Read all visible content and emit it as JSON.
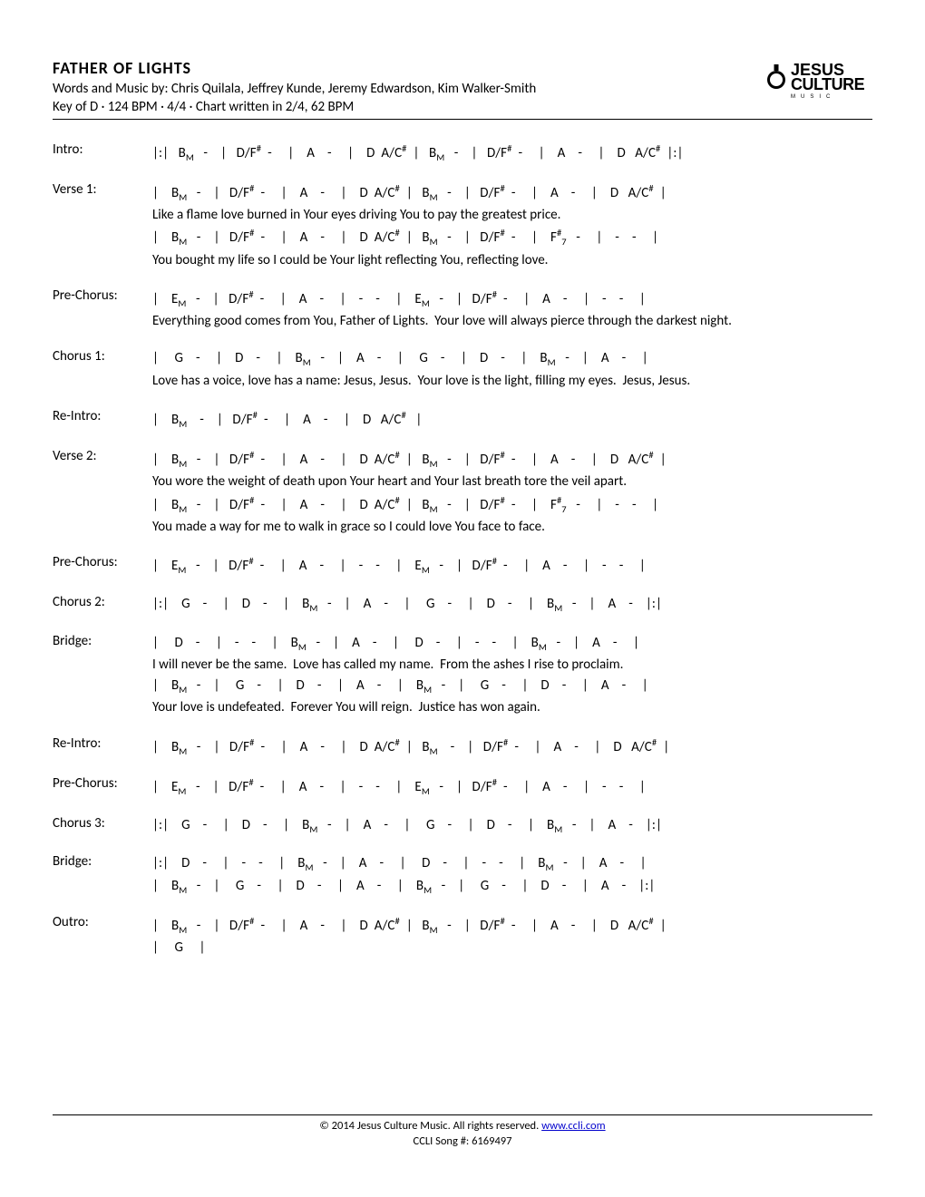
{
  "header": {
    "title": "FATHER OF LIGHTS",
    "byline": "Words and Music by: Chris Quilala, Jeffrey Kunde, Jeremy Edwardson, Kim Walker-Smith",
    "keyline": "Key of D · 124 BPM · 4/4 · Chart written in 2/4, 62 BPM",
    "logo_line1": "JESUS",
    "logo_line2": "CULTURE",
    "logo_line3": "MUSIC"
  },
  "sections": [
    {
      "label": "Intro:",
      "lines": [
        {
          "type": "chords",
          "html": "|:|&nbsp;&nbsp; B<sub>M</sub>&nbsp;&nbsp; -&nbsp;&nbsp;&nbsp; |&nbsp;&nbsp; D/F<sup>#</sup>&nbsp; -&nbsp;&nbsp;&nbsp;&nbsp; |&nbsp;&nbsp;&nbsp; A&nbsp;&nbsp;&nbsp; -&nbsp;&nbsp;&nbsp;&nbsp; |&nbsp;&nbsp;&nbsp; D&nbsp; A/C<sup>#</sup>&nbsp; |&nbsp;&nbsp; B<sub>M</sub>&nbsp;&nbsp; -&nbsp;&nbsp;&nbsp; |&nbsp;&nbsp; D/F<sup>#</sup>&nbsp; -&nbsp;&nbsp;&nbsp;&nbsp; |&nbsp;&nbsp;&nbsp; A&nbsp;&nbsp;&nbsp; -&nbsp;&nbsp;&nbsp;&nbsp; |&nbsp;&nbsp;&nbsp; D&nbsp;&nbsp; A/C<sup>#</sup>&nbsp;&nbsp;|:|"
        }
      ]
    },
    {
      "label": "Verse 1:",
      "lines": [
        {
          "type": "chords",
          "html": "|&nbsp;&nbsp;&nbsp; B<sub>M</sub>&nbsp;&nbsp; -&nbsp;&nbsp;&nbsp; |&nbsp;&nbsp; D/F<sup>#</sup>&nbsp; -&nbsp;&nbsp;&nbsp;&nbsp; |&nbsp;&nbsp;&nbsp; A&nbsp;&nbsp;&nbsp; -&nbsp;&nbsp;&nbsp;&nbsp; |&nbsp;&nbsp;&nbsp; D&nbsp; A/C<sup>#</sup>&nbsp; |&nbsp;&nbsp; B<sub>M</sub>&nbsp;&nbsp; -&nbsp;&nbsp;&nbsp; |&nbsp;&nbsp; D/F<sup>#</sup>&nbsp; -&nbsp;&nbsp;&nbsp;&nbsp; |&nbsp;&nbsp;&nbsp; A&nbsp;&nbsp;&nbsp; -&nbsp;&nbsp;&nbsp;&nbsp; |&nbsp;&nbsp;&nbsp; D&nbsp;&nbsp; A/C<sup>#</sup>&nbsp;&nbsp;|"
        },
        {
          "type": "lyric",
          "html": "Like a flame love burned in Your eyes driving You to pay the greatest price."
        },
        {
          "type": "chords",
          "html": "|&nbsp;&nbsp;&nbsp; B<sub>M</sub>&nbsp;&nbsp; -&nbsp;&nbsp;&nbsp; |&nbsp;&nbsp; D/F<sup>#</sup>&nbsp; -&nbsp;&nbsp;&nbsp;&nbsp; |&nbsp;&nbsp;&nbsp; A&nbsp;&nbsp;&nbsp; -&nbsp;&nbsp;&nbsp;&nbsp; |&nbsp;&nbsp;&nbsp; D&nbsp; A/C<sup>#</sup>&nbsp; |&nbsp;&nbsp; B<sub>M</sub>&nbsp;&nbsp; -&nbsp;&nbsp;&nbsp; |&nbsp;&nbsp; D/F<sup>#</sup>&nbsp; -&nbsp;&nbsp;&nbsp;&nbsp; |&nbsp;&nbsp;&nbsp; F<sup>#</sup><sub>7</sub>&nbsp;&nbsp; -&nbsp;&nbsp;&nbsp;&nbsp; |&nbsp;&nbsp;&nbsp; -&nbsp;&nbsp;&nbsp; -&nbsp;&nbsp;&nbsp;&nbsp; |"
        },
        {
          "type": "lyric",
          "html": "You bought my life so I could be Your light reflecting You, reflecting love."
        }
      ]
    },
    {
      "label": "Pre-Chorus:",
      "lines": [
        {
          "type": "chords",
          "html": "|&nbsp;&nbsp;&nbsp; E<sub>M</sub>&nbsp;&nbsp; -&nbsp;&nbsp;&nbsp; |&nbsp;&nbsp; D/F<sup>#</sup>&nbsp; -&nbsp;&nbsp;&nbsp;&nbsp; |&nbsp;&nbsp;&nbsp; A&nbsp;&nbsp;&nbsp; -&nbsp;&nbsp;&nbsp;&nbsp; |&nbsp;&nbsp;&nbsp; -&nbsp;&nbsp;&nbsp; -&nbsp;&nbsp;&nbsp;&nbsp; |&nbsp;&nbsp;&nbsp; E<sub>M</sub>&nbsp;&nbsp; -&nbsp;&nbsp;&nbsp; |&nbsp;&nbsp; D/F<sup>#</sup>&nbsp; -&nbsp;&nbsp;&nbsp;&nbsp; |&nbsp;&nbsp;&nbsp; A&nbsp;&nbsp;&nbsp; -&nbsp;&nbsp;&nbsp;&nbsp; |&nbsp;&nbsp;&nbsp; -&nbsp;&nbsp;&nbsp; -&nbsp;&nbsp;&nbsp;&nbsp; |"
        },
        {
          "type": "lyric",
          "html": "Everything good comes from You, Father of Lights.&nbsp;&nbsp;Your love will always pierce through the darkest night."
        }
      ]
    },
    {
      "label": "Chorus 1:",
      "lines": [
        {
          "type": "chords",
          "html": "|&nbsp;&nbsp;&nbsp;&nbsp; G&nbsp;&nbsp;&nbsp; -&nbsp;&nbsp;&nbsp;&nbsp; |&nbsp;&nbsp;&nbsp; D&nbsp;&nbsp;&nbsp; -&nbsp;&nbsp;&nbsp;&nbsp; |&nbsp;&nbsp;&nbsp; B<sub>M</sub>&nbsp;&nbsp; -&nbsp;&nbsp;&nbsp; |&nbsp;&nbsp;&nbsp; A&nbsp;&nbsp;&nbsp; -&nbsp;&nbsp;&nbsp;&nbsp; |&nbsp;&nbsp;&nbsp;&nbsp; G&nbsp;&nbsp;&nbsp; -&nbsp;&nbsp;&nbsp;&nbsp; |&nbsp;&nbsp;&nbsp; D&nbsp;&nbsp;&nbsp; -&nbsp;&nbsp;&nbsp;&nbsp; |&nbsp;&nbsp;&nbsp; B<sub>M</sub>&nbsp;&nbsp; -&nbsp;&nbsp;&nbsp; |&nbsp;&nbsp;&nbsp; A&nbsp;&nbsp;&nbsp; -&nbsp;&nbsp;&nbsp;&nbsp; |"
        },
        {
          "type": "lyric",
          "html": "Love has a voice, love has a name: Jesus, Jesus.&nbsp;&nbsp;Your love is the light, filling my eyes.&nbsp;&nbsp;Jesus, Jesus."
        }
      ]
    },
    {
      "label": "Re-Intro:",
      "lines": [
        {
          "type": "chords",
          "html": "|&nbsp;&nbsp;&nbsp; B<sub>M</sub>&nbsp;&nbsp;&nbsp;&nbsp;-&nbsp;&nbsp;&nbsp; |&nbsp;&nbsp; D/F<sup>#</sup>&nbsp; -&nbsp;&nbsp;&nbsp;&nbsp; |&nbsp;&nbsp;&nbsp; A&nbsp;&nbsp;&nbsp; -&nbsp;&nbsp;&nbsp;&nbsp; |&nbsp;&nbsp;&nbsp; D&nbsp;&nbsp; A/C<sup>#</sup>&nbsp;&nbsp;&nbsp;|"
        }
      ]
    },
    {
      "label": "Verse 2:",
      "lines": [
        {
          "type": "chords",
          "html": "|&nbsp;&nbsp;&nbsp; B<sub>M</sub>&nbsp;&nbsp; -&nbsp;&nbsp;&nbsp; |&nbsp;&nbsp; D/F<sup>#</sup>&nbsp; -&nbsp;&nbsp;&nbsp;&nbsp; |&nbsp;&nbsp;&nbsp; A&nbsp;&nbsp;&nbsp; -&nbsp;&nbsp;&nbsp;&nbsp; |&nbsp;&nbsp;&nbsp; D&nbsp; A/C<sup>#</sup>&nbsp; |&nbsp;&nbsp; B<sub>M</sub>&nbsp;&nbsp; -&nbsp;&nbsp;&nbsp; |&nbsp;&nbsp; D/F<sup>#</sup>&nbsp; -&nbsp;&nbsp;&nbsp;&nbsp; |&nbsp;&nbsp;&nbsp; A&nbsp;&nbsp;&nbsp; -&nbsp;&nbsp;&nbsp;&nbsp; |&nbsp;&nbsp;&nbsp; D&nbsp;&nbsp; A/C<sup>#</sup>&nbsp;&nbsp;|"
        },
        {
          "type": "lyric",
          "html": "You wore the weight of death upon Your heart and Your last breath tore the veil apart."
        },
        {
          "type": "chords",
          "html": "|&nbsp;&nbsp;&nbsp; B<sub>M</sub>&nbsp;&nbsp; -&nbsp;&nbsp;&nbsp; |&nbsp;&nbsp; D/F<sup>#</sup>&nbsp; -&nbsp;&nbsp;&nbsp;&nbsp; |&nbsp;&nbsp;&nbsp; A&nbsp;&nbsp;&nbsp; -&nbsp;&nbsp;&nbsp;&nbsp; |&nbsp;&nbsp;&nbsp; D&nbsp; A/C<sup>#</sup>&nbsp; |&nbsp;&nbsp; B<sub>M</sub>&nbsp;&nbsp; -&nbsp;&nbsp;&nbsp; |&nbsp;&nbsp; D/F<sup>#</sup>&nbsp; -&nbsp;&nbsp;&nbsp;&nbsp; |&nbsp;&nbsp;&nbsp; F<sup>#</sup><sub>7</sub>&nbsp;&nbsp; -&nbsp;&nbsp;&nbsp;&nbsp; |&nbsp;&nbsp;&nbsp; -&nbsp;&nbsp;&nbsp; -&nbsp;&nbsp;&nbsp;&nbsp; |"
        },
        {
          "type": "lyric",
          "html": "You made a way for me to walk in grace so I could love You face to face."
        }
      ]
    },
    {
      "label": "Pre-Chorus:",
      "lines": [
        {
          "type": "chords",
          "html": "|&nbsp;&nbsp;&nbsp; E<sub>M</sub>&nbsp;&nbsp;&nbsp;-&nbsp;&nbsp;&nbsp; |&nbsp;&nbsp; D/F<sup>#</sup>&nbsp; -&nbsp;&nbsp;&nbsp;&nbsp; |&nbsp;&nbsp;&nbsp; A&nbsp;&nbsp;&nbsp; -&nbsp;&nbsp;&nbsp;&nbsp; |&nbsp;&nbsp;&nbsp; -&nbsp;&nbsp;&nbsp; -&nbsp;&nbsp;&nbsp;&nbsp; |&nbsp;&nbsp;&nbsp; E<sub>M</sub>&nbsp;&nbsp; -&nbsp;&nbsp;&nbsp; |&nbsp;&nbsp; D/F<sup>#</sup>&nbsp; -&nbsp;&nbsp;&nbsp;&nbsp; |&nbsp;&nbsp;&nbsp; A&nbsp;&nbsp;&nbsp; -&nbsp;&nbsp;&nbsp;&nbsp; |&nbsp;&nbsp;&nbsp; -&nbsp;&nbsp;&nbsp; -&nbsp;&nbsp;&nbsp;&nbsp; |"
        }
      ]
    },
    {
      "label": "Chorus 2:",
      "lines": [
        {
          "type": "chords",
          "html": "|:|&nbsp;&nbsp;&nbsp; G&nbsp;&nbsp;&nbsp; -&nbsp;&nbsp;&nbsp;&nbsp; |&nbsp;&nbsp;&nbsp; D&nbsp;&nbsp;&nbsp; -&nbsp;&nbsp;&nbsp;&nbsp; |&nbsp;&nbsp;&nbsp; B<sub>M</sub>&nbsp;&nbsp; -&nbsp;&nbsp;&nbsp; |&nbsp;&nbsp;&nbsp; A&nbsp;&nbsp;&nbsp; -&nbsp;&nbsp;&nbsp;&nbsp; |&nbsp;&nbsp;&nbsp;&nbsp; G&nbsp;&nbsp;&nbsp; -&nbsp;&nbsp;&nbsp;&nbsp; |&nbsp;&nbsp;&nbsp; D&nbsp;&nbsp;&nbsp; -&nbsp;&nbsp;&nbsp;&nbsp; |&nbsp;&nbsp;&nbsp; B<sub>M</sub>&nbsp;&nbsp; -&nbsp;&nbsp;&nbsp; |&nbsp;&nbsp;&nbsp; A&nbsp;&nbsp;&nbsp; -&nbsp;&nbsp;&nbsp;&nbsp;|:|"
        }
      ]
    },
    {
      "label": "Bridge:",
      "lines": [
        {
          "type": "chords",
          "html": "|&nbsp;&nbsp;&nbsp;&nbsp; D&nbsp;&nbsp;&nbsp; -&nbsp;&nbsp;&nbsp;&nbsp; |&nbsp;&nbsp;&nbsp; -&nbsp;&nbsp;&nbsp; -&nbsp;&nbsp;&nbsp;&nbsp; |&nbsp;&nbsp;&nbsp; B<sub>M</sub>&nbsp;&nbsp; -&nbsp;&nbsp;&nbsp; |&nbsp;&nbsp;&nbsp; A&nbsp;&nbsp;&nbsp; -&nbsp;&nbsp;&nbsp;&nbsp; |&nbsp;&nbsp;&nbsp;&nbsp; D&nbsp;&nbsp;&nbsp; -&nbsp;&nbsp;&nbsp;&nbsp; |&nbsp;&nbsp;&nbsp; -&nbsp;&nbsp;&nbsp; -&nbsp;&nbsp;&nbsp;&nbsp; |&nbsp;&nbsp;&nbsp; B<sub>M</sub>&nbsp;&nbsp; -&nbsp;&nbsp;&nbsp; |&nbsp;&nbsp;&nbsp; A&nbsp;&nbsp;&nbsp; -&nbsp;&nbsp;&nbsp;&nbsp; |"
        },
        {
          "type": "lyric",
          "html": "I will never be the same.&nbsp;&nbsp;Love has called my name.&nbsp;&nbsp;From the ashes I rise to proclaim."
        },
        {
          "type": "chords",
          "html": "|&nbsp;&nbsp;&nbsp; B<sub>M</sub>&nbsp;&nbsp; -&nbsp;&nbsp;&nbsp; |&nbsp;&nbsp;&nbsp;&nbsp; G&nbsp;&nbsp;&nbsp; -&nbsp;&nbsp;&nbsp;&nbsp; |&nbsp;&nbsp;&nbsp; D&nbsp;&nbsp;&nbsp; -&nbsp;&nbsp;&nbsp;&nbsp; |&nbsp;&nbsp;&nbsp; A&nbsp;&nbsp;&nbsp; -&nbsp;&nbsp;&nbsp;&nbsp; |&nbsp;&nbsp;&nbsp; B<sub>M</sub>&nbsp;&nbsp; -&nbsp;&nbsp;&nbsp; |&nbsp;&nbsp;&nbsp;&nbsp; G&nbsp;&nbsp;&nbsp; -&nbsp;&nbsp;&nbsp;&nbsp; |&nbsp;&nbsp;&nbsp; D&nbsp;&nbsp;&nbsp; -&nbsp;&nbsp;&nbsp;&nbsp; |&nbsp;&nbsp;&nbsp; A&nbsp;&nbsp;&nbsp; -&nbsp;&nbsp;&nbsp;&nbsp; |"
        },
        {
          "type": "lyric",
          "html": "Your love is undefeated.&nbsp;&nbsp;Forever You will reign.&nbsp;&nbsp;Justice has won again."
        }
      ]
    },
    {
      "label": "Re-Intro:",
      "lines": [
        {
          "type": "chords",
          "html": "|&nbsp;&nbsp;&nbsp; B<sub>M</sub>&nbsp;&nbsp; -&nbsp;&nbsp;&nbsp; |&nbsp;&nbsp; D/F<sup>#</sup>&nbsp; -&nbsp;&nbsp;&nbsp;&nbsp; |&nbsp;&nbsp;&nbsp; A&nbsp;&nbsp;&nbsp; -&nbsp;&nbsp;&nbsp;&nbsp; |&nbsp;&nbsp;&nbsp; D&nbsp; A/C<sup>#</sup>&nbsp; |&nbsp;&nbsp; B<sub>M</sub>&nbsp;&nbsp;&nbsp;&nbsp;-&nbsp;&nbsp;&nbsp; |&nbsp;&nbsp; D/F<sup>#</sup>&nbsp; -&nbsp;&nbsp;&nbsp;&nbsp; |&nbsp;&nbsp;&nbsp; A&nbsp;&nbsp;&nbsp; -&nbsp;&nbsp;&nbsp;&nbsp; |&nbsp;&nbsp;&nbsp; D&nbsp;&nbsp; A/C<sup>#</sup>&nbsp;&nbsp;|"
        }
      ]
    },
    {
      "label": "Pre-Chorus:",
      "lines": [
        {
          "type": "chords",
          "html": "|&nbsp;&nbsp;&nbsp; E<sub>M</sub>&nbsp;&nbsp;&nbsp;-&nbsp;&nbsp;&nbsp; |&nbsp;&nbsp; D/F<sup>#</sup>&nbsp; -&nbsp;&nbsp;&nbsp;&nbsp; |&nbsp;&nbsp;&nbsp; A&nbsp;&nbsp;&nbsp; -&nbsp;&nbsp;&nbsp;&nbsp; |&nbsp;&nbsp;&nbsp; -&nbsp;&nbsp;&nbsp; -&nbsp;&nbsp;&nbsp;&nbsp; |&nbsp;&nbsp;&nbsp; E<sub>M</sub>&nbsp;&nbsp; -&nbsp;&nbsp;&nbsp; |&nbsp;&nbsp; D/F<sup>#</sup>&nbsp; -&nbsp;&nbsp;&nbsp;&nbsp; |&nbsp;&nbsp;&nbsp; A&nbsp;&nbsp;&nbsp; -&nbsp;&nbsp;&nbsp;&nbsp; |&nbsp;&nbsp;&nbsp; -&nbsp;&nbsp;&nbsp; -&nbsp;&nbsp;&nbsp;&nbsp; |"
        }
      ]
    },
    {
      "label": "Chorus 3:",
      "lines": [
        {
          "type": "chords",
          "html": "|:|&nbsp;&nbsp;&nbsp; G&nbsp;&nbsp;&nbsp; -&nbsp;&nbsp;&nbsp;&nbsp; |&nbsp;&nbsp;&nbsp; D&nbsp;&nbsp;&nbsp; -&nbsp;&nbsp;&nbsp;&nbsp; |&nbsp;&nbsp;&nbsp; B<sub>M</sub>&nbsp;&nbsp; -&nbsp;&nbsp;&nbsp; |&nbsp;&nbsp;&nbsp; A&nbsp;&nbsp;&nbsp; -&nbsp;&nbsp;&nbsp;&nbsp; |&nbsp;&nbsp;&nbsp;&nbsp; G&nbsp;&nbsp;&nbsp; -&nbsp;&nbsp;&nbsp;&nbsp; |&nbsp;&nbsp;&nbsp; D&nbsp;&nbsp;&nbsp; -&nbsp;&nbsp;&nbsp;&nbsp; |&nbsp;&nbsp;&nbsp; B<sub>M</sub>&nbsp;&nbsp; -&nbsp;&nbsp;&nbsp; |&nbsp;&nbsp;&nbsp; A&nbsp;&nbsp;&nbsp; -&nbsp;&nbsp;&nbsp;&nbsp;|:|"
        }
      ]
    },
    {
      "label": "Bridge:",
      "lines": [
        {
          "type": "chords",
          "html": "|:|&nbsp;&nbsp;&nbsp; D&nbsp;&nbsp;&nbsp; -&nbsp;&nbsp;&nbsp;&nbsp; |&nbsp;&nbsp;&nbsp; -&nbsp;&nbsp;&nbsp; -&nbsp;&nbsp;&nbsp;&nbsp; |&nbsp;&nbsp;&nbsp; B<sub>M</sub>&nbsp;&nbsp; -&nbsp;&nbsp;&nbsp; |&nbsp;&nbsp;&nbsp; A&nbsp;&nbsp;&nbsp; -&nbsp;&nbsp;&nbsp;&nbsp; |&nbsp;&nbsp;&nbsp;&nbsp; D&nbsp;&nbsp;&nbsp; -&nbsp;&nbsp;&nbsp;&nbsp; |&nbsp;&nbsp;&nbsp; -&nbsp;&nbsp;&nbsp; -&nbsp;&nbsp;&nbsp;&nbsp; |&nbsp;&nbsp;&nbsp; B<sub>M</sub>&nbsp;&nbsp; -&nbsp;&nbsp;&nbsp; |&nbsp;&nbsp;&nbsp; A&nbsp;&nbsp;&nbsp; -&nbsp;&nbsp;&nbsp;&nbsp; |"
        },
        {
          "type": "chords",
          "html": "|&nbsp;&nbsp;&nbsp; B<sub>M</sub>&nbsp;&nbsp; -&nbsp;&nbsp;&nbsp; |&nbsp;&nbsp;&nbsp;&nbsp; G&nbsp;&nbsp;&nbsp; -&nbsp;&nbsp;&nbsp;&nbsp; |&nbsp;&nbsp;&nbsp; D&nbsp;&nbsp;&nbsp; -&nbsp;&nbsp;&nbsp;&nbsp; |&nbsp;&nbsp;&nbsp; A&nbsp;&nbsp;&nbsp; -&nbsp;&nbsp;&nbsp;&nbsp; |&nbsp;&nbsp;&nbsp; B<sub>M</sub>&nbsp;&nbsp; -&nbsp;&nbsp;&nbsp; |&nbsp;&nbsp;&nbsp;&nbsp; G&nbsp;&nbsp;&nbsp; -&nbsp;&nbsp;&nbsp;&nbsp; |&nbsp;&nbsp;&nbsp; D&nbsp;&nbsp;&nbsp; -&nbsp;&nbsp;&nbsp;&nbsp; |&nbsp;&nbsp;&nbsp; A&nbsp;&nbsp;&nbsp; -&nbsp;&nbsp;&nbsp;&nbsp;|:|"
        }
      ]
    },
    {
      "label": "Outro:",
      "lines": [
        {
          "type": "chords",
          "html": "|&nbsp;&nbsp;&nbsp; B<sub>M</sub>&nbsp;&nbsp; -&nbsp;&nbsp;&nbsp; |&nbsp;&nbsp; D/F<sup>#</sup>&nbsp; -&nbsp;&nbsp;&nbsp;&nbsp; |&nbsp;&nbsp;&nbsp; A&nbsp;&nbsp;&nbsp; -&nbsp;&nbsp;&nbsp;&nbsp; |&nbsp;&nbsp;&nbsp; D&nbsp; A/C<sup>#</sup>&nbsp; |&nbsp;&nbsp; B<sub>M</sub>&nbsp;&nbsp; -&nbsp;&nbsp;&nbsp; |&nbsp;&nbsp; D/F<sup>#</sup>&nbsp; -&nbsp;&nbsp;&nbsp;&nbsp; |&nbsp;&nbsp;&nbsp; A&nbsp;&nbsp;&nbsp; -&nbsp;&nbsp;&nbsp;&nbsp; |&nbsp;&nbsp;&nbsp; D&nbsp;&nbsp; A/C<sup>#</sup>&nbsp;&nbsp;|"
        },
        {
          "type": "chords",
          "html": "|&nbsp;&nbsp;&nbsp;&nbsp; G&nbsp;&nbsp;&nbsp;&nbsp; |"
        }
      ]
    }
  ],
  "footer": {
    "line1_pre": "© 2014 Jesus Culture Music.  All rights reserved.  ",
    "line1_link": "www.ccli.com",
    "line2": "CCLI Song #: 6169497"
  },
  "colors": {
    "text": "#000000",
    "link": "#0000cc",
    "rule": "#000000",
    "bg": "#ffffff"
  }
}
